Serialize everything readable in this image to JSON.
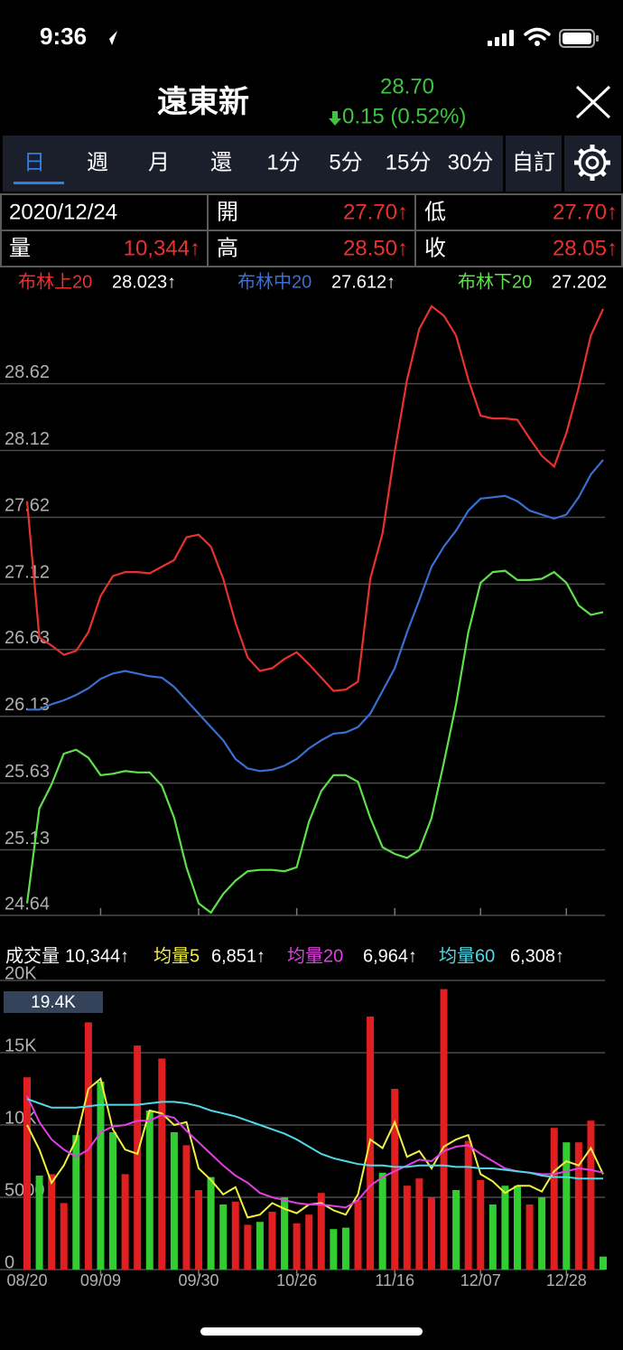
{
  "status_bar": {
    "time": "9:36"
  },
  "header": {
    "title": "遠東新",
    "price": "28.70",
    "change": "0.15 (0.52%)"
  },
  "tabs": [
    "日",
    "週",
    "月",
    "還",
    "1分",
    "5分",
    "15分",
    "30分",
    "自訂"
  ],
  "quote": {
    "date": "2020/12/24",
    "items": [
      {
        "label": "開",
        "value": "27.70↑"
      },
      {
        "label": "低",
        "value": "27.70↑"
      },
      {
        "label": "量",
        "value": "10,344↑"
      },
      {
        "label": "高",
        "value": "28.50↑"
      },
      {
        "label": "收",
        "value": "28.05↑"
      }
    ]
  },
  "chart_data": [
    {
      "type": "line",
      "ylim": [
        24.64,
        29.26
      ],
      "yticks": [
        24.64,
        25.13,
        25.63,
        26.13,
        26.63,
        27.12,
        27.62,
        28.12,
        28.62
      ],
      "grid": true,
      "series": [
        {
          "name": "布林上20",
          "legend_value": "28.023↑",
          "color": "#e8322e",
          "values": [
            27.74,
            26.72,
            26.66,
            26.59,
            26.62,
            26.76,
            27.03,
            27.18,
            27.21,
            27.21,
            27.2,
            27.25,
            27.3,
            27.47,
            27.49,
            27.4,
            27.16,
            26.83,
            26.57,
            26.47,
            26.49,
            26.56,
            26.61,
            26.52,
            26.42,
            26.32,
            26.33,
            26.39,
            27.16,
            27.5,
            28.11,
            28.65,
            29.03,
            29.2,
            29.13,
            28.98,
            28.65,
            28.38,
            28.36,
            28.36,
            28.35,
            28.21,
            28.08,
            28.0,
            28.25,
            28.59,
            28.98,
            29.18
          ]
        },
        {
          "name": "布林中20",
          "legend_value": "27.612↑",
          "color": "#3a6fd0",
          "values": [
            26.18,
            26.18,
            26.22,
            26.25,
            26.29,
            26.34,
            26.41,
            26.45,
            26.47,
            26.45,
            26.43,
            26.42,
            26.35,
            26.25,
            26.15,
            26.05,
            25.95,
            25.81,
            25.74,
            25.72,
            25.73,
            25.76,
            25.81,
            25.89,
            25.95,
            26.0,
            26.01,
            26.05,
            26.15,
            26.32,
            26.49,
            26.76,
            27.0,
            27.25,
            27.4,
            27.52,
            27.67,
            27.76,
            27.77,
            27.78,
            27.74,
            27.67,
            27.64,
            27.61,
            27.64,
            27.77,
            27.94,
            28.05
          ]
        },
        {
          "name": "布林下20",
          "legend_value": "27.202",
          "color": "#5ee04a",
          "values": [
            24.73,
            25.44,
            25.62,
            25.85,
            25.88,
            25.82,
            25.69,
            25.7,
            25.72,
            25.71,
            25.71,
            25.61,
            25.37,
            25.0,
            24.73,
            24.66,
            24.8,
            24.9,
            24.97,
            24.98,
            24.98,
            24.97,
            25.0,
            25.34,
            25.57,
            25.69,
            25.69,
            25.64,
            25.37,
            25.15,
            25.1,
            25.07,
            25.13,
            25.37,
            25.78,
            26.22,
            26.76,
            27.13,
            27.21,
            27.22,
            27.15,
            27.15,
            27.16,
            27.21,
            27.13,
            26.96,
            26.89,
            26.91
          ]
        }
      ]
    },
    {
      "type": "bar",
      "name": "成交量",
      "legend_value": "10,344↑",
      "max_label": "19.4K",
      "ylim": [
        0,
        20000
      ],
      "yticks": [
        0,
        5000,
        {
          "value": 10000,
          "label": "10K"
        },
        {
          "value": 15000,
          "label": "15K"
        },
        {
          "value": 20000,
          "label": "20K"
        }
      ],
      "grid": true,
      "categories": [
        "08/20",
        null,
        null,
        null,
        null,
        null,
        "09/09",
        null,
        null,
        null,
        null,
        null,
        null,
        null,
        "09/30",
        null,
        null,
        null,
        null,
        null,
        null,
        null,
        "10/26",
        null,
        null,
        null,
        null,
        null,
        null,
        null,
        "11/16",
        null,
        null,
        null,
        null,
        null,
        null,
        "12/07",
        null,
        null,
        null,
        null,
        null,
        null,
        "12/28",
        null,
        null,
        null
      ],
      "values": [
        13300,
        6500,
        6600,
        4600,
        9300,
        17100,
        13000,
        9500,
        6600,
        15500,
        11000,
        14600,
        9500,
        8600,
        5500,
        6400,
        4500,
        4700,
        3100,
        3300,
        4000,
        5000,
        3200,
        3800,
        5300,
        2800,
        2900,
        4800,
        17500,
        6700,
        12500,
        5800,
        6300,
        5000,
        19400,
        5500,
        8900,
        6200,
        4500,
        5800,
        5800,
        4500,
        5000,
        9800,
        8800,
        8800,
        10300,
        900
      ],
      "colors": [
        "#e02020",
        "#33cc33",
        "#e02020",
        "#e02020",
        "#33cc33",
        "#e02020",
        "#33cc33",
        "#33cc33",
        "#e02020",
        "#e02020",
        "#33cc33",
        "#e02020",
        "#33cc33",
        "#e02020",
        "#e02020",
        "#33cc33",
        "#33cc33",
        "#e02020",
        "#e02020",
        "#33cc33",
        "#e02020",
        "#33cc33",
        "#e02020",
        "#e02020",
        "#e02020",
        "#33cc33",
        "#33cc33",
        "#e02020",
        "#e02020",
        "#33cc33",
        "#e02020",
        "#e02020",
        "#e02020",
        "#e02020",
        "#e02020",
        "#33cc33",
        "#e02020",
        "#e02020",
        "#33cc33",
        "#33cc33",
        "#33cc33",
        "#e02020",
        "#33cc33",
        "#e02020",
        "#33cc33",
        "#e02020",
        "#e02020",
        "#33cc33"
      ],
      "lines": [
        {
          "name": "均量5",
          "legend_value": "6,851↑",
          "color": "#f0f040",
          "values": [
            10000,
            8300,
            6000,
            7200,
            9000,
            12500,
            13200,
            9700,
            8300,
            8000,
            11000,
            10800,
            10000,
            10200,
            7000,
            6200,
            5200,
            5700,
            3600,
            3800,
            4600,
            4200,
            3900,
            4500,
            4600,
            4100,
            3800,
            5200,
            9000,
            8400,
            10200,
            7800,
            8200,
            7000,
            8500,
            9000,
            9300,
            6600,
            6100,
            5300,
            5800,
            5800,
            5400,
            6800,
            7500,
            7200,
            8400,
            6600
          ]
        },
        {
          "name": "均量20",
          "legend_value": "6,964↑",
          "color": "#e040e0",
          "values": [
            12000,
            10200,
            9000,
            8300,
            7800,
            8300,
            9500,
            9900,
            10000,
            10300,
            10300,
            10700,
            10500,
            9600,
            8800,
            8000,
            7200,
            6500,
            6000,
            5300,
            5000,
            4800,
            4600,
            4500,
            4500,
            4400,
            4300,
            4800,
            5800,
            6400,
            6800,
            7200,
            7600,
            7500,
            8200,
            8500,
            8600,
            8000,
            7500,
            7000,
            6800,
            6700,
            6600,
            6600,
            6800,
            7000,
            6900,
            6700
          ]
        },
        {
          "name": "均量60",
          "legend_value": "6,308↑",
          "color": "#50d8e8",
          "values": [
            11800,
            11500,
            11200,
            11200,
            11200,
            11300,
            11400,
            11400,
            11400,
            11400,
            11500,
            11600,
            11600,
            11500,
            11300,
            11000,
            10800,
            10600,
            10300,
            10000,
            9700,
            9400,
            9000,
            8500,
            8000,
            7700,
            7500,
            7300,
            7200,
            7200,
            7100,
            7100,
            7200,
            7200,
            7200,
            7100,
            7100,
            7000,
            7000,
            6900,
            6800,
            6700,
            6500,
            6400,
            6400,
            6300,
            6300,
            6300
          ]
        }
      ]
    }
  ]
}
